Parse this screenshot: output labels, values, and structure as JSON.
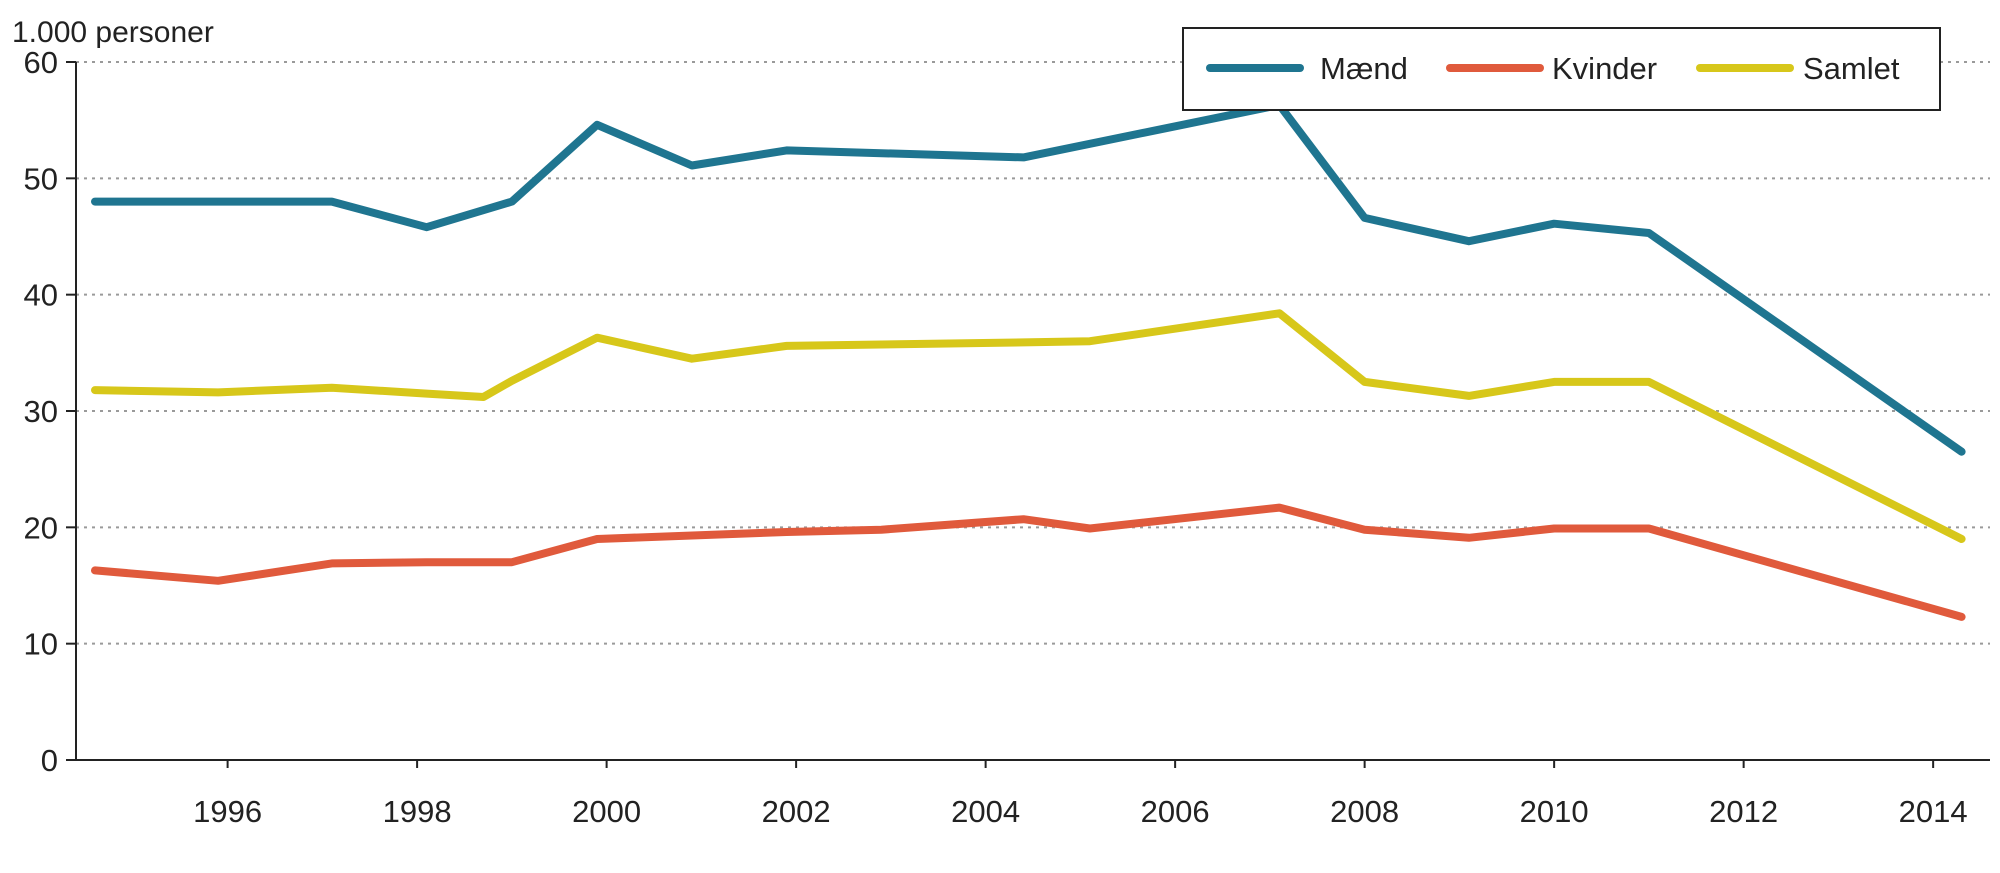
{
  "chart_data": {
    "type": "line",
    "ylabel": "1.000 personer",
    "xlabel": "",
    "title": "",
    "ylim": [
      0,
      60
    ],
    "yticks": [
      0,
      10,
      20,
      30,
      40,
      50,
      60
    ],
    "xlim": [
      1994.4,
      2014.6
    ],
    "xticks": [
      1996,
      1998,
      2000,
      2002,
      2004,
      2006,
      2008,
      2010,
      2012,
      2014
    ],
    "grid": "horizontal-dotted",
    "legend_position": "top-right",
    "series": [
      {
        "name": "Mænd",
        "color": "#1f7590",
        "points": [
          [
            1994.6,
            48.0
          ],
          [
            1995.9,
            48.0
          ],
          [
            1997.1,
            48.0
          ],
          [
            1998.1,
            45.8
          ],
          [
            1999.0,
            48.0
          ],
          [
            1999.9,
            54.6
          ],
          [
            2000.9,
            51.1
          ],
          [
            2001.9,
            52.4
          ],
          [
            2004.4,
            51.8
          ],
          [
            2007.1,
            56.3
          ],
          [
            2008.0,
            46.6
          ],
          [
            2009.1,
            44.6
          ],
          [
            2010.0,
            46.1
          ],
          [
            2011.0,
            45.3
          ],
          [
            2014.3,
            26.5
          ]
        ]
      },
      {
        "name": "Kvinder",
        "color": "#e05a3c",
        "points": [
          [
            1994.6,
            16.3
          ],
          [
            1995.9,
            15.4
          ],
          [
            1997.1,
            16.9
          ],
          [
            1998.1,
            17.0
          ],
          [
            1999.0,
            17.0
          ],
          [
            1999.9,
            19.0
          ],
          [
            2001.9,
            19.6
          ],
          [
            2002.9,
            19.8
          ],
          [
            2004.4,
            20.7
          ],
          [
            2005.1,
            19.9
          ],
          [
            2007.1,
            21.7
          ],
          [
            2008.0,
            19.8
          ],
          [
            2009.1,
            19.1
          ],
          [
            2010.0,
            19.9
          ],
          [
            2011.0,
            19.9
          ],
          [
            2014.3,
            12.3
          ]
        ]
      },
      {
        "name": "Samlet",
        "color": "#d7c71a",
        "points": [
          [
            1994.6,
            31.8
          ],
          [
            1995.9,
            31.6
          ],
          [
            1997.1,
            32.0
          ],
          [
            1998.1,
            31.5
          ],
          [
            1998.7,
            31.2
          ],
          [
            1999.0,
            32.6
          ],
          [
            1999.9,
            36.3
          ],
          [
            2000.9,
            34.5
          ],
          [
            2001.9,
            35.6
          ],
          [
            2004.4,
            35.9
          ],
          [
            2005.1,
            36.0
          ],
          [
            2007.1,
            38.4
          ],
          [
            2008.0,
            32.5
          ],
          [
            2009.1,
            31.3
          ],
          [
            2010.0,
            32.5
          ],
          [
            2011.0,
            32.5
          ],
          [
            2014.3,
            19.0
          ]
        ]
      }
    ]
  }
}
